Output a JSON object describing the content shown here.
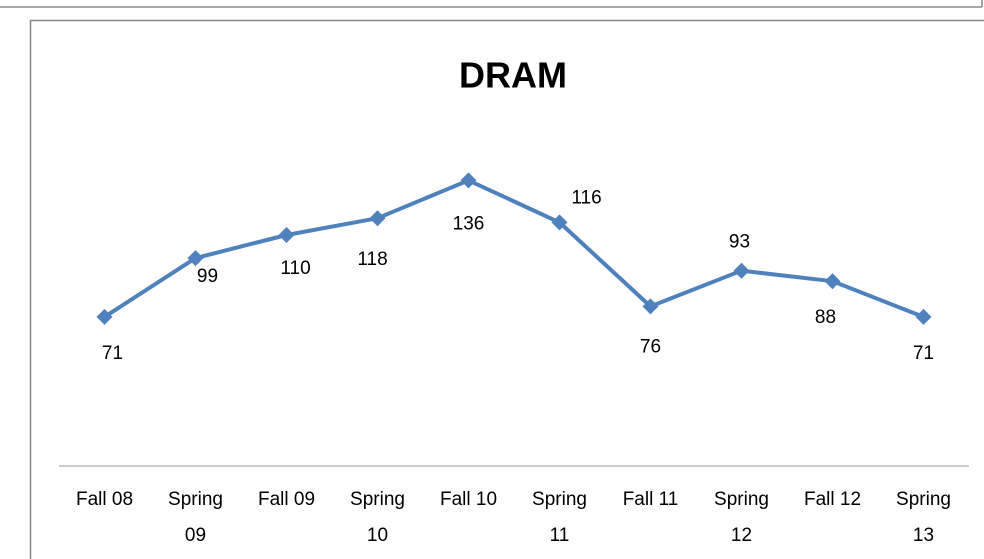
{
  "chart_data": {
    "type": "line",
    "title": "DRAM",
    "categories": [
      "Fall 08",
      "Spring 09",
      "Fall 09",
      "Spring 10",
      "Fall 10",
      "Spring 11",
      "Fall 11",
      "Spring 12",
      "Fall 12",
      "Spring 13"
    ],
    "values": [
      71,
      99,
      110,
      118,
      136,
      116,
      76,
      93,
      88,
      71
    ],
    "color": "#4f81bd",
    "ylim": [
      0,
      160
    ]
  }
}
